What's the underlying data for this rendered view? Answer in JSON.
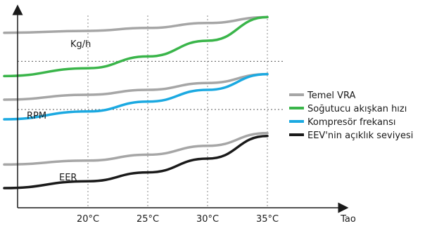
{
  "chart_data": {
    "type": "line",
    "x_categories": [
      "20°C",
      "25°C",
      "30°C",
      "35°C"
    ],
    "xlabel": "Tao",
    "annotations": [
      "Kg/h",
      "RPM",
      "EER"
    ],
    "grid": "dotted",
    "legend_position": "right",
    "legend": [
      {
        "name": "Temel VRA",
        "color": "#a6a6a6"
      },
      {
        "name": "Soğutucu akışkan hızı",
        "color": "#3ab54a"
      },
      {
        "name": "Kompresör frekansı",
        "color": "#1ba9e1"
      },
      {
        "name": "EEV'nin açıklık seviyesi",
        "color": "#1a1a1a"
      }
    ],
    "series": [
      {
        "color": "#a6a6a6",
        "x": [
          13,
          20,
          25,
          30,
          35
        ],
        "y": [
          8.9,
          9.0,
          9.15,
          9.4,
          9.7
        ]
      },
      {
        "color": "#3ab54a",
        "x": [
          13,
          20,
          25,
          30,
          35
        ],
        "y": [
          6.7,
          7.1,
          7.7,
          8.5,
          9.7
        ]
      },
      {
        "color": "#a6a6a6",
        "x": [
          13,
          20,
          25,
          30,
          35
        ],
        "y": [
          5.5,
          5.75,
          6.0,
          6.35,
          6.8
        ]
      },
      {
        "color": "#1ba9e1",
        "x": [
          13,
          20,
          25,
          30,
          35
        ],
        "y": [
          4.5,
          4.9,
          5.4,
          6.0,
          6.8
        ]
      },
      {
        "color": "#a6a6a6",
        "x": [
          13,
          20,
          25,
          30,
          35
        ],
        "y": [
          2.2,
          2.4,
          2.7,
          3.15,
          3.8
        ]
      },
      {
        "color": "#1a1a1a",
        "x": [
          13,
          20,
          25,
          30,
          35
        ],
        "y": [
          1.0,
          1.35,
          1.8,
          2.5,
          3.65
        ]
      }
    ],
    "reference_lines_y": [
      7.45,
      5.0
    ]
  }
}
